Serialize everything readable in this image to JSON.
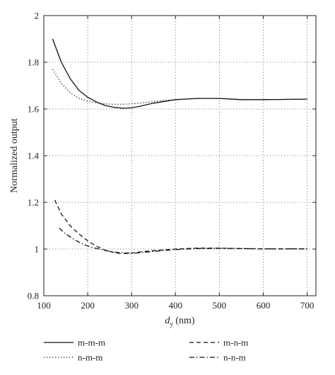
{
  "chart_data": {
    "type": "line",
    "title": "",
    "xlabel": {
      "var": "d",
      "sub": "y",
      "unit": " (nm)"
    },
    "ylabel": "Normalized output",
    "xlim": [
      100,
      720
    ],
    "ylim": [
      0.8,
      2.0
    ],
    "xticks": [
      100,
      200,
      300,
      400,
      500,
      600,
      700
    ],
    "yticks": [
      0.8,
      1,
      1.2,
      1.4,
      1.6,
      1.8,
      2
    ],
    "ytick_labels": [
      "0.8",
      "1",
      "1.2",
      "1.4",
      "1.6",
      "1.8",
      "2"
    ],
    "grid": true,
    "legend_position": "bottom",
    "series": [
      {
        "name": "m-m-m",
        "dash": "solid",
        "x": [
          120,
          140,
          160,
          180,
          200,
          220,
          240,
          260,
          280,
          300,
          320,
          350,
          400,
          450,
          500,
          550,
          600,
          650,
          700
        ],
        "y": [
          1.9,
          1.8,
          1.73,
          1.68,
          1.65,
          1.63,
          1.615,
          1.607,
          1.603,
          1.605,
          1.612,
          1.625,
          1.64,
          1.645,
          1.645,
          1.64,
          1.64,
          1.641,
          1.642
        ]
      },
      {
        "name": "n-m-m",
        "dash": "dotted",
        "x": [
          120,
          140,
          160,
          180,
          200,
          220,
          240,
          260,
          280,
          300,
          320,
          350,
          400,
          450,
          500,
          550,
          600,
          650,
          700
        ],
        "y": [
          1.77,
          1.71,
          1.67,
          1.645,
          1.633,
          1.626,
          1.622,
          1.62,
          1.62,
          1.622,
          1.625,
          1.632,
          1.64,
          1.645,
          1.645,
          1.64,
          1.64,
          1.641,
          1.642
        ]
      },
      {
        "name": "m-n-m",
        "dash": "dashed",
        "x": [
          125,
          140,
          160,
          180,
          200,
          220,
          240,
          260,
          280,
          300,
          320,
          350,
          400,
          450,
          500,
          550,
          600,
          650,
          700
        ],
        "y": [
          1.21,
          1.15,
          1.1,
          1.065,
          1.035,
          1.012,
          0.995,
          0.985,
          0.98,
          0.983,
          0.988,
          0.993,
          1.0,
          1.004,
          1.004,
          1.002,
          1.001,
          1.001,
          1.001
        ]
      },
      {
        "name": "n-n-m",
        "dash": "dashdot",
        "x": [
          135,
          150,
          170,
          190,
          210,
          230,
          250,
          270,
          290,
          310,
          330,
          350,
          400,
          450,
          500,
          550,
          600,
          650,
          700
        ],
        "y": [
          1.09,
          1.065,
          1.04,
          1.02,
          1.007,
          0.998,
          0.99,
          0.985,
          0.983,
          0.983,
          0.986,
          0.99,
          0.998,
          1.002,
          1.003,
          1.002,
          1.001,
          1.001,
          1.001
        ]
      }
    ]
  }
}
